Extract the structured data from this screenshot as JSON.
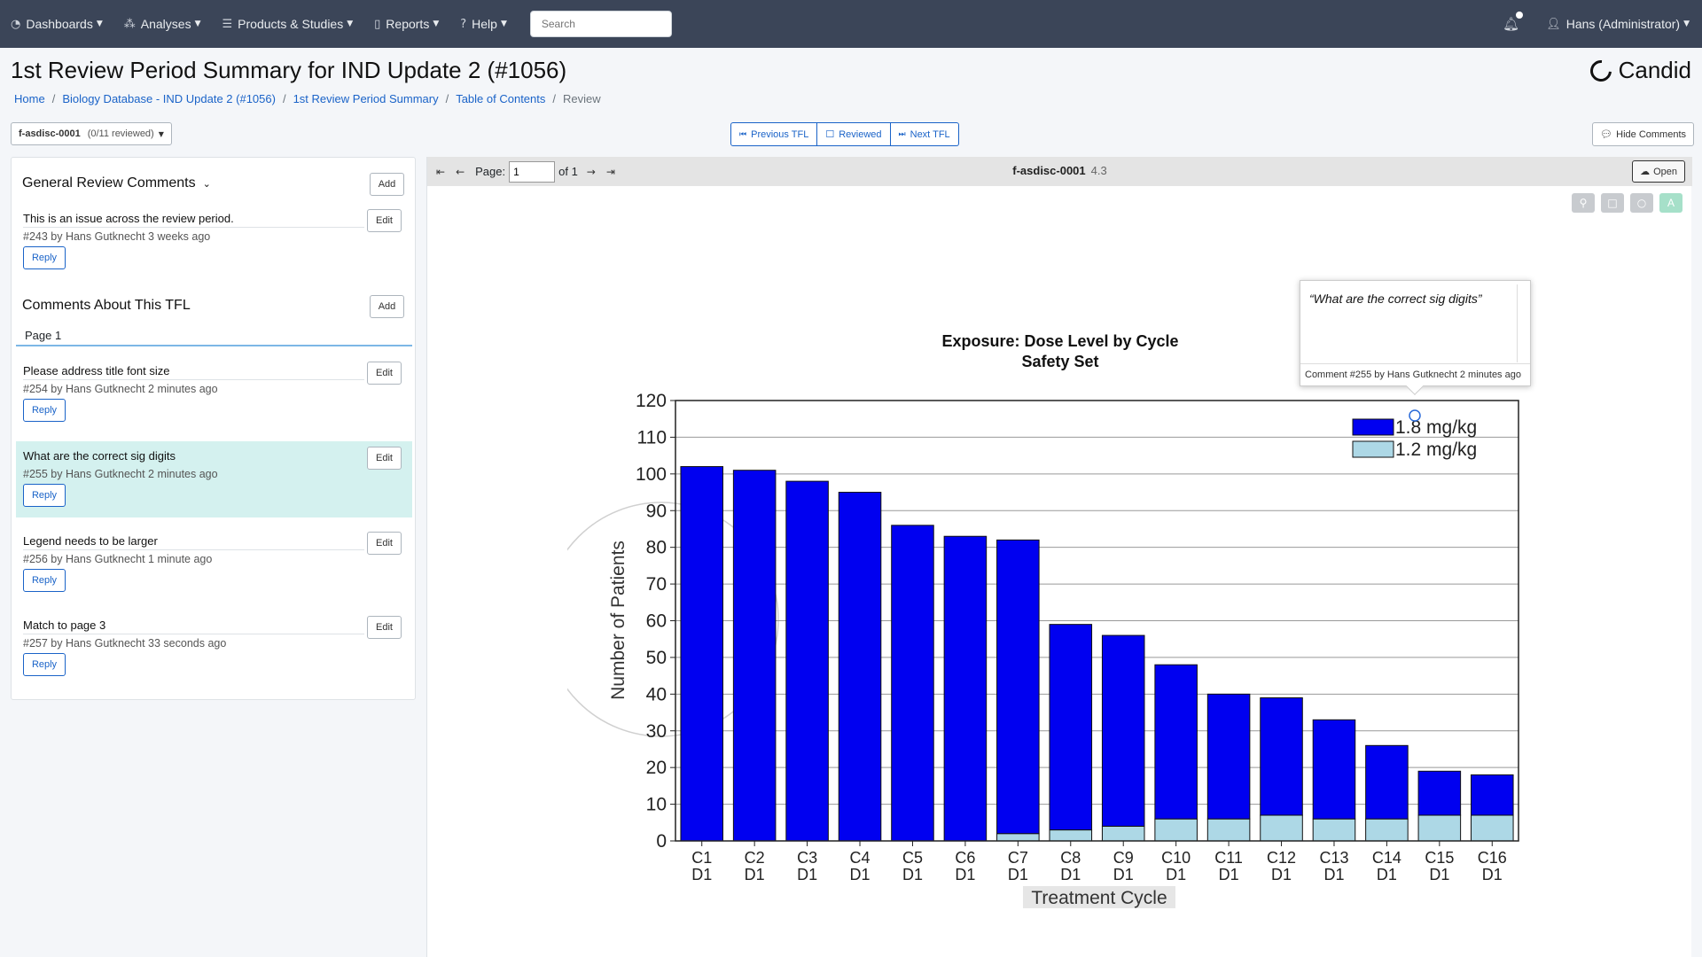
{
  "nav": {
    "dashboards": "Dashboards",
    "analyses": "Analyses",
    "products": "Products & Studies",
    "reports": "Reports",
    "help": "Help",
    "search_placeholder": "Search",
    "user": "Hans (Administrator)"
  },
  "page": {
    "title": "1st Review Period Summary for IND Update 2 (#1056)",
    "brand": "Candid"
  },
  "breadcrumb": {
    "home": "Home",
    "database": "Biology Database - IND Update 2 (#1056)",
    "summary": "1st Review Period Summary",
    "toc": "Table of Contents",
    "current": "Review"
  },
  "toolbar": {
    "tfl_id": "f-asdisc-0001",
    "tfl_progress": "(0/11 reviewed)",
    "previous": "Previous TFL",
    "reviewed": "Reviewed",
    "next": "Next TFL",
    "hide_comments": "Hide Comments"
  },
  "comments_panel": {
    "general_title": "General Review Comments",
    "tfl_title": "Comments About This TFL",
    "add_label": "Add",
    "edit_label": "Edit",
    "reply_label": "Reply",
    "page_tab": "Page 1",
    "general": [
      {
        "text": "This is an issue across the review period.",
        "meta": "#243 by Hans Gutknecht 3 weeks ago"
      }
    ],
    "tfl": [
      {
        "text": "Please address title font size",
        "meta": "#254 by Hans Gutknecht 2 minutes ago"
      },
      {
        "text": "What are the correct sig digits",
        "meta": "#255 by Hans Gutknecht 2 minutes ago"
      },
      {
        "text": "Legend needs to be larger",
        "meta": "#256 by Hans Gutknecht 1 minute ago"
      },
      {
        "text": "Match to page 3",
        "meta": "#257 by Hans Gutknecht 33 seconds ago"
      }
    ]
  },
  "viewer": {
    "page_label": "Page:",
    "page_value": "1",
    "page_of": "of 1",
    "doc_id": "f-asdisc-0001",
    "version": "4.3",
    "open_label": "Open",
    "tool_text": "A"
  },
  "tooltip": {
    "quote": "“What are the correct sig digits”",
    "meta": "Comment #255 by Hans Gutknecht 2 minutes ago"
  },
  "chart_data": {
    "type": "bar",
    "stacked": true,
    "title": "Exposure: Dose Level by Cycle",
    "subtitle": "Safety Set",
    "xlabel": "Treatment Cycle",
    "ylabel": "Number of Patients",
    "ylim": [
      0,
      120
    ],
    "yticks": [
      0,
      10,
      20,
      30,
      40,
      50,
      60,
      70,
      80,
      90,
      100,
      110,
      120
    ],
    "grid": true,
    "legend": "top-right",
    "categories": [
      "C1 D1",
      "C2 D1",
      "C3 D1",
      "C4 D1",
      "C5 D1",
      "C6 D1",
      "C7 D1",
      "C8 D1",
      "C9 D1",
      "C10 D1",
      "C11 D1",
      "C12 D1",
      "C13 D1",
      "C14 D1",
      "C15 D1",
      "C16 D1"
    ],
    "series": [
      {
        "name": "1.8 mg/kg",
        "color": "#0000f0",
        "values": [
          102,
          101,
          98,
          95,
          86,
          83,
          80,
          56,
          52,
          42,
          34,
          32,
          27,
          20,
          12,
          11
        ]
      },
      {
        "name": "1.2 mg/kg",
        "color": "#add8e6",
        "values": [
          0,
          0,
          0,
          0,
          0,
          0,
          2,
          3,
          4,
          6,
          6,
          7,
          6,
          6,
          7,
          7
        ]
      }
    ]
  }
}
